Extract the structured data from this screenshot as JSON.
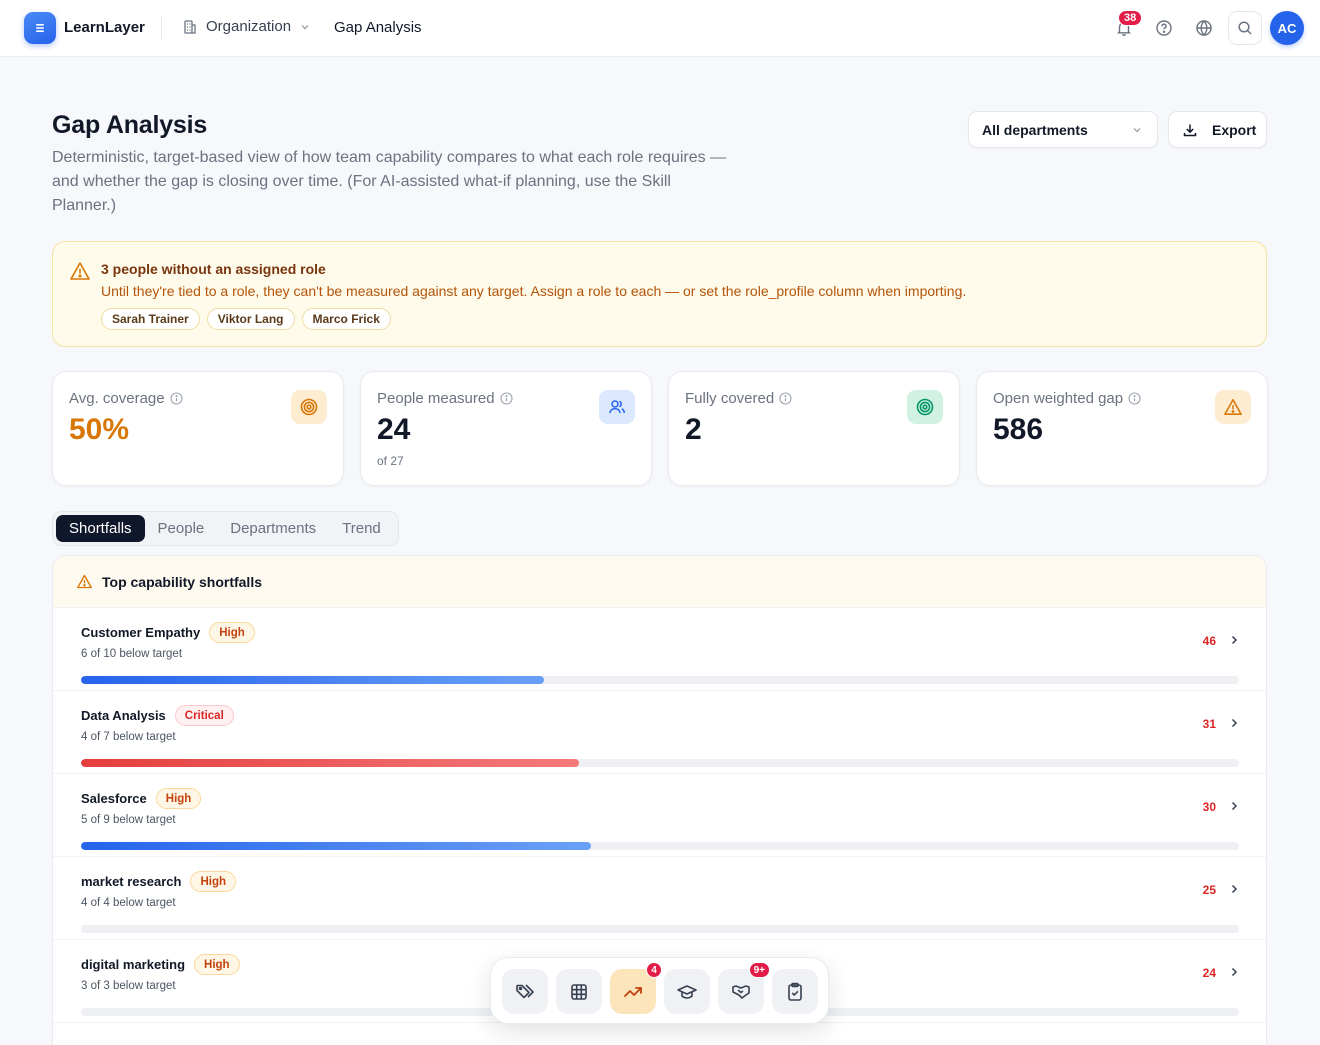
{
  "app": {
    "brand": "LearnLayer",
    "org_label": "Organization",
    "breadcrumb": "Gap Analysis"
  },
  "topbar": {
    "notifications_count": "38",
    "avatar_initials": "AC"
  },
  "header": {
    "title": "Gap Analysis",
    "description": "Deterministic, target-based view of how team capability compares to what each role requires — and whether the gap is closing over time. (For AI-assisted what-if planning, use the Skill Planner.)",
    "department_select": "All departments",
    "export_label": "Export"
  },
  "banner": {
    "title": "3 people without an assigned role",
    "text": "Until they're tied to a role, they can't be measured against any target. Assign a role to each — or set the role_profile column when importing.",
    "people": [
      "Sarah Trainer",
      "Viktor Lang",
      "Marco Frick"
    ]
  },
  "stats": [
    {
      "label": "Avg. coverage",
      "value": "50%",
      "sub": "",
      "icon": "target-icon"
    },
    {
      "label": "People measured",
      "value": "24",
      "sub": "of 27",
      "icon": "users-icon"
    },
    {
      "label": "Fully covered",
      "value": "2",
      "sub": "",
      "icon": "target-icon"
    },
    {
      "label": "Open weighted gap",
      "value": "586",
      "sub": "",
      "icon": "warning-icon"
    }
  ],
  "tabs": [
    "Shortfalls",
    "People",
    "Departments",
    "Trend"
  ],
  "shortfalls": {
    "title": "Top capability shortfalls",
    "rows": [
      {
        "name": "Customer Empathy",
        "severity": "High",
        "below": "6 of 10 below target",
        "score": "46",
        "bar_fraction": 0.4,
        "bar_color": "blue"
      },
      {
        "name": "Data Analysis",
        "severity": "Critical",
        "below": "4 of 7 below target",
        "score": "31",
        "bar_fraction": 0.43,
        "bar_color": "red"
      },
      {
        "name": "Salesforce",
        "severity": "High",
        "below": "5 of 9 below target",
        "score": "30",
        "bar_fraction": 0.44,
        "bar_color": "blue"
      },
      {
        "name": "market research",
        "severity": "High",
        "below": "4 of 4 below target",
        "score": "25",
        "bar_fraction": 0,
        "bar_color": "blue"
      },
      {
        "name": "digital marketing",
        "severity": "High",
        "below": "3 of 3 below target",
        "score": "24",
        "bar_fraction": 0,
        "bar_color": "blue"
      }
    ]
  },
  "dock": [
    {
      "icon": "tags-icon",
      "badge": ""
    },
    {
      "icon": "grid-icon",
      "badge": ""
    },
    {
      "icon": "trending-up-icon",
      "badge": "4",
      "active": true
    },
    {
      "icon": "graduation-cap-icon",
      "badge": ""
    },
    {
      "icon": "handshake-icon",
      "badge": "9+"
    },
    {
      "icon": "clipboard-check-icon",
      "badge": ""
    }
  ],
  "colors": {
    "accent": "#2563eb",
    "warning": "#d97706",
    "danger": "#dc2626",
    "success": "#059669"
  }
}
